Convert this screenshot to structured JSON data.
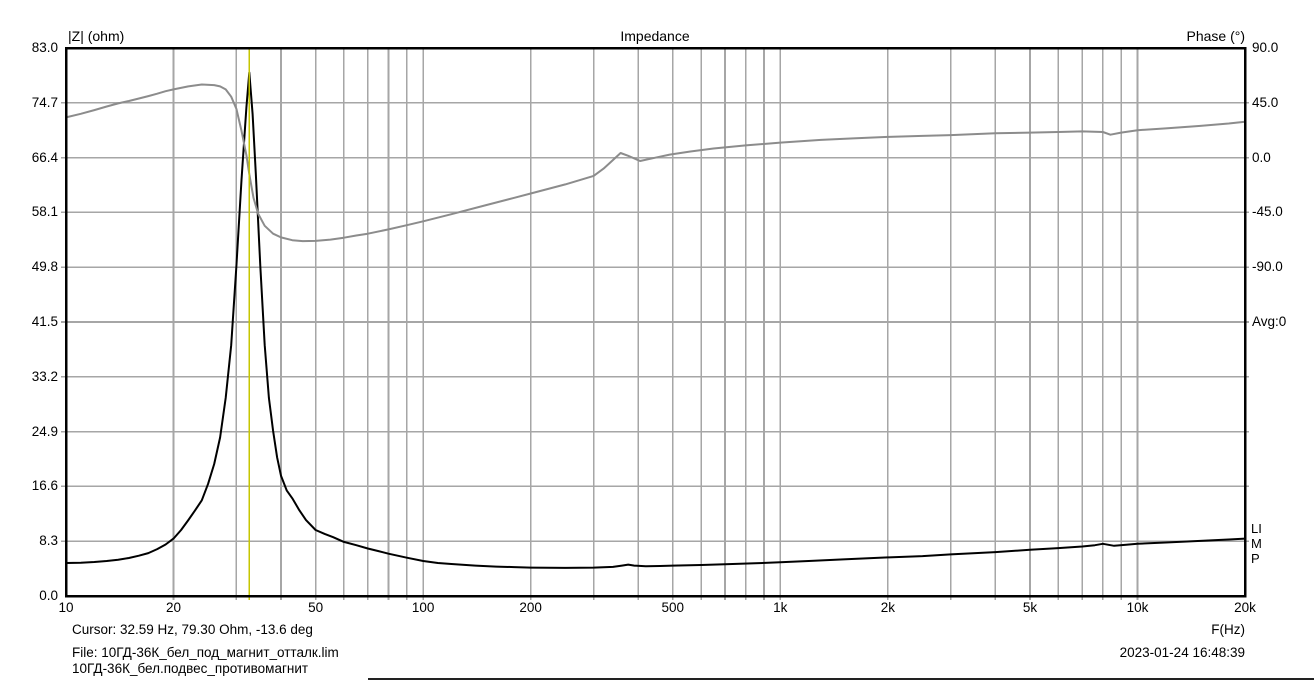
{
  "header": {
    "y_left_label": "|Z| (ohm)",
    "title": "Impedance",
    "y_right_label": "Phase (°)"
  },
  "side": {
    "avg_label": "Avg:0",
    "watermark": "LIMP"
  },
  "footer": {
    "cursor_text": "Cursor: 32.59 Hz, 79.30 Ohm, -13.6 deg",
    "file_text": "File: 10ГД-36К_бел_под_магнит_отталк.lim",
    "note_text": "10ГД-36К_бел.подвес_противомагнит",
    "x_axis_label": "F(Hz)",
    "datetime": "2023-01-24 16:48:39"
  },
  "colors": {
    "impedance_curve": "#000000",
    "phase_curve": "#8c8c8c",
    "grid": "#a6a6a6",
    "cursor": "#c6c600",
    "border": "#000000",
    "background": "#ffffff"
  },
  "chart_data": {
    "type": "line",
    "title": "Impedance",
    "x_axis": {
      "label": "F(Hz)",
      "scale": "log",
      "min_hz": 10,
      "max_hz": 20000,
      "ticks": [
        {
          "label": "10",
          "hz": 10
        },
        {
          "label": "20",
          "hz": 20
        },
        {
          "label": "50",
          "hz": 50
        },
        {
          "label": "100",
          "hz": 100
        },
        {
          "label": "200",
          "hz": 200
        },
        {
          "label": "500",
          "hz": 500
        },
        {
          "label": "1k",
          "hz": 1000
        },
        {
          "label": "2k",
          "hz": 2000
        },
        {
          "label": "5k",
          "hz": 5000
        },
        {
          "label": "10k",
          "hz": 10000
        },
        {
          "label": "20k",
          "hz": 20000
        }
      ]
    },
    "y_left": {
      "label": "|Z| (ohm)",
      "min": 0,
      "max": 83,
      "ticks": [
        {
          "label": "83.0",
          "ohm": 83.0
        },
        {
          "label": "74.7",
          "ohm": 74.7
        },
        {
          "label": "66.4",
          "ohm": 66.4
        },
        {
          "label": "58.1",
          "ohm": 58.1
        },
        {
          "label": "49.8",
          "ohm": 49.8
        },
        {
          "label": "41.5",
          "ohm": 41.5
        },
        {
          "label": "33.2",
          "ohm": 33.2
        },
        {
          "label": "24.9",
          "ohm": 24.9
        },
        {
          "label": "16.6",
          "ohm": 16.6
        },
        {
          "label": "8.3",
          "ohm": 8.3
        },
        {
          "label": "0.0",
          "ohm": 0.0
        }
      ]
    },
    "y_right": {
      "label": "Phase (°)",
      "deg_per_division": 45,
      "top_deg": 90,
      "ticks": [
        {
          "label": "90.0",
          "deg": 90
        },
        {
          "label": "45.0",
          "deg": 45
        },
        {
          "label": "0.0",
          "deg": 0
        },
        {
          "label": "-45.0",
          "deg": -45
        },
        {
          "label": "-90.0",
          "deg": -90
        }
      ]
    },
    "gridlines": {
      "x_hz": [
        20,
        30,
        40,
        50,
        60,
        70,
        80,
        90,
        100,
        200,
        300,
        400,
        500,
        600,
        700,
        800,
        900,
        1000,
        2000,
        3000,
        4000,
        5000,
        6000,
        7000,
        8000,
        9000,
        10000
      ],
      "y_ohm": [
        8.3,
        16.6,
        24.9,
        33.2,
        41.5,
        49.8,
        58.1,
        66.4,
        74.7
      ]
    },
    "cursor": {
      "hz": 32.59,
      "ohm": 79.3,
      "deg": -13.6
    },
    "series": [
      {
        "name": "impedance",
        "axis": "left",
        "color": "#000000",
        "points": [
          [
            10,
            5.0
          ],
          [
            11,
            5.05
          ],
          [
            12,
            5.15
          ],
          [
            13,
            5.3
          ],
          [
            14,
            5.5
          ],
          [
            15,
            5.75
          ],
          [
            16,
            6.1
          ],
          [
            17,
            6.5
          ],
          [
            18,
            7.1
          ],
          [
            19,
            7.8
          ],
          [
            20,
            8.7
          ],
          [
            21,
            10
          ],
          [
            22,
            11.5
          ],
          [
            23,
            13
          ],
          [
            24,
            14.5
          ],
          [
            25,
            17
          ],
          [
            26,
            20
          ],
          [
            27,
            24
          ],
          [
            28,
            30
          ],
          [
            29,
            38
          ],
          [
            30,
            50
          ],
          [
            31,
            63
          ],
          [
            32,
            74
          ],
          [
            32.6,
            79.3
          ],
          [
            33.3,
            73
          ],
          [
            34,
            64
          ],
          [
            35,
            50
          ],
          [
            36,
            38
          ],
          [
            37,
            30
          ],
          [
            38,
            25
          ],
          [
            39,
            21
          ],
          [
            40,
            18.2
          ],
          [
            41.5,
            16
          ],
          [
            43,
            14.8
          ],
          [
            45,
            13
          ],
          [
            47,
            11.5
          ],
          [
            50,
            10
          ],
          [
            53,
            9.4
          ],
          [
            56,
            8.9
          ],
          [
            60,
            8.2
          ],
          [
            65,
            7.7
          ],
          [
            70,
            7.2
          ],
          [
            75,
            6.8
          ],
          [
            80,
            6.4
          ],
          [
            90,
            5.8
          ],
          [
            100,
            5.3
          ],
          [
            110,
            5.0
          ],
          [
            120,
            4.85
          ],
          [
            140,
            4.6
          ],
          [
            160,
            4.45
          ],
          [
            180,
            4.37
          ],
          [
            200,
            4.3
          ],
          [
            250,
            4.25
          ],
          [
            300,
            4.3
          ],
          [
            340,
            4.4
          ],
          [
            360,
            4.6
          ],
          [
            375,
            4.75
          ],
          [
            390,
            4.6
          ],
          [
            420,
            4.5
          ],
          [
            460,
            4.55
          ],
          [
            500,
            4.6
          ],
          [
            600,
            4.7
          ],
          [
            700,
            4.8
          ],
          [
            850,
            4.95
          ],
          [
            1000,
            5.1
          ],
          [
            1200,
            5.3
          ],
          [
            1500,
            5.55
          ],
          [
            2000,
            5.85
          ],
          [
            2500,
            6.05
          ],
          [
            3000,
            6.3
          ],
          [
            4000,
            6.65
          ],
          [
            5000,
            7.0
          ],
          [
            6000,
            7.25
          ],
          [
            7000,
            7.5
          ],
          [
            7600,
            7.7
          ],
          [
            8000,
            7.9
          ],
          [
            8600,
            7.6
          ],
          [
            9300,
            7.75
          ],
          [
            10000,
            7.9
          ],
          [
            12000,
            8.1
          ],
          [
            15000,
            8.35
          ],
          [
            18000,
            8.55
          ],
          [
            20000,
            8.7
          ]
        ]
      },
      {
        "name": "phase",
        "axis": "right",
        "color": "#8c8c8c",
        "points": [
          [
            10,
            33
          ],
          [
            11,
            36
          ],
          [
            12,
            39
          ],
          [
            13,
            42
          ],
          [
            14,
            44.5
          ],
          [
            15,
            46.5
          ],
          [
            16,
            48.5
          ],
          [
            17,
            50.5
          ],
          [
            18,
            52.5
          ],
          [
            19,
            54.5
          ],
          [
            20,
            56
          ],
          [
            22,
            58.5
          ],
          [
            24,
            60
          ],
          [
            26,
            59.5
          ],
          [
            27,
            58.5
          ],
          [
            28,
            56
          ],
          [
            29,
            50
          ],
          [
            30,
            40
          ],
          [
            31,
            22
          ],
          [
            32,
            2
          ],
          [
            32.6,
            -13.6
          ],
          [
            33.5,
            -33
          ],
          [
            34.5,
            -46
          ],
          [
            36,
            -56
          ],
          [
            38,
            -62.5
          ],
          [
            40,
            -65.5
          ],
          [
            43,
            -67.8
          ],
          [
            46,
            -68.6
          ],
          [
            50,
            -68.4
          ],
          [
            55,
            -67.3
          ],
          [
            60,
            -65.8
          ],
          [
            65,
            -64
          ],
          [
            70,
            -62.5
          ],
          [
            80,
            -59
          ],
          [
            90,
            -55.5
          ],
          [
            100,
            -52.3
          ],
          [
            120,
            -46.5
          ],
          [
            150,
            -39
          ],
          [
            180,
            -33
          ],
          [
            200,
            -29.5
          ],
          [
            250,
            -22
          ],
          [
            300,
            -15
          ],
          [
            320,
            -9
          ],
          [
            340,
            -2
          ],
          [
            357,
            3.8
          ],
          [
            375,
            1.5
          ],
          [
            405,
            -2.8
          ],
          [
            440,
            -0.5
          ],
          [
            490,
            2.5
          ],
          [
            560,
            5
          ],
          [
            650,
            7.5
          ],
          [
            800,
            10
          ],
          [
            1000,
            12.3
          ],
          [
            1300,
            14.5
          ],
          [
            1600,
            15.8
          ],
          [
            2000,
            17
          ],
          [
            2500,
            17.8
          ],
          [
            3000,
            18.5
          ],
          [
            4000,
            20
          ],
          [
            5000,
            20.5
          ],
          [
            6000,
            21
          ],
          [
            7000,
            21.5
          ],
          [
            8000,
            21
          ],
          [
            8400,
            18.8
          ],
          [
            9000,
            20.5
          ],
          [
            10000,
            22.5
          ],
          [
            12000,
            24
          ],
          [
            15000,
            26
          ],
          [
            18000,
            28
          ],
          [
            20000,
            29.5
          ]
        ]
      }
    ]
  }
}
